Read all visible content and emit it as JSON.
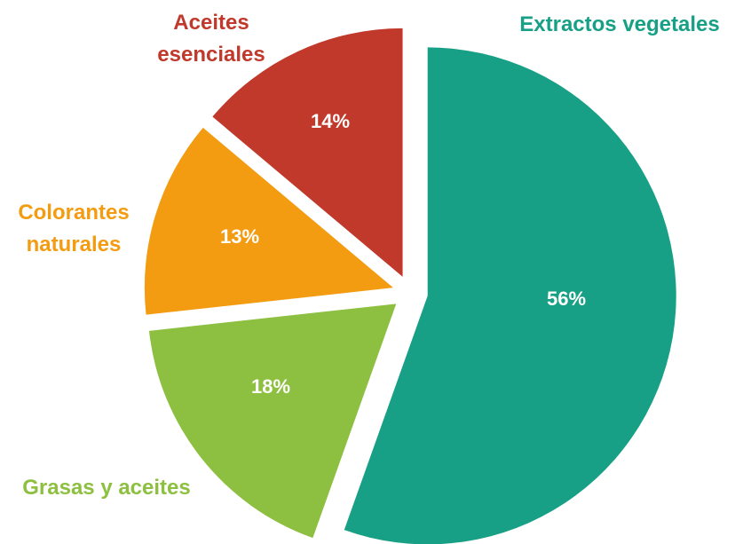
{
  "chart_data": {
    "type": "pie",
    "categories": [
      "Extractos vegetales",
      "Grasas y aceites",
      "Colorantes naturales",
      "Aceites esenciales"
    ],
    "values": [
      56,
      18,
      13,
      14
    ],
    "value_labels": [
      "56%",
      "18%",
      "13%",
      "14%"
    ],
    "colors": [
      "#17a085",
      "#8dc040",
      "#f39c12",
      "#c0392b"
    ]
  }
}
